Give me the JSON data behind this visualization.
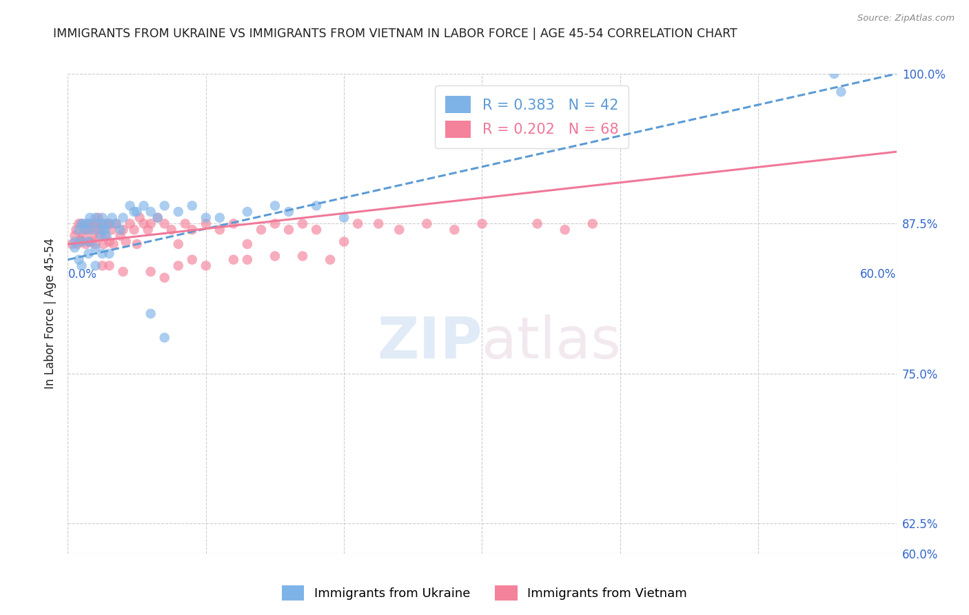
{
  "title": "IMMIGRANTS FROM UKRAINE VS IMMIGRANTS FROM VIETNAM IN LABOR FORCE | AGE 45-54 CORRELATION CHART",
  "source": "Source: ZipAtlas.com",
  "ylabel": "In Labor Force | Age 45-54",
  "ytick_labels": [
    "60.0%",
    "62.5%",
    "75.0%",
    "87.5%",
    "100.0%"
  ],
  "ytick_values": [
    0.6,
    0.625,
    0.75,
    0.875,
    1.0
  ],
  "xlim": [
    0.0,
    0.6
  ],
  "ylim": [
    0.6,
    1.0
  ],
  "ukraine_color": "#7EB3E8",
  "vietnam_color": "#F4829A",
  "ukraine_R": 0.383,
  "ukraine_N": 42,
  "vietnam_R": 0.202,
  "vietnam_N": 68,
  "legend_label_ukraine": "Immigrants from Ukraine",
  "legend_label_vietnam": "Immigrants from Vietnam",
  "watermark_zip": "ZIP",
  "watermark_atlas": "atlas",
  "title_color": "#222222",
  "tick_color": "#3366CC",
  "grid_color": "#CCCCCC",
  "ukraine_line_color": "#5B9BD5",
  "vietnam_line_color": "#F07898",
  "ukraine_line_x": [
    0.0,
    0.6
  ],
  "ukraine_line_y": [
    0.845,
    1.0
  ],
  "vietnam_line_x": [
    0.0,
    0.6
  ],
  "vietnam_line_y": [
    0.858,
    0.935
  ],
  "ukraine_scatter_x": [
    0.005,
    0.008,
    0.01,
    0.01,
    0.012,
    0.013,
    0.015,
    0.015,
    0.016,
    0.018,
    0.02,
    0.02,
    0.022,
    0.024,
    0.025,
    0.025,
    0.026,
    0.027,
    0.028,
    0.03,
    0.032,
    0.035,
    0.038,
    0.04,
    0.045,
    0.048,
    0.05,
    0.055,
    0.06,
    0.065,
    0.07,
    0.08,
    0.09,
    0.1,
    0.11,
    0.13,
    0.15,
    0.16,
    0.18,
    0.2,
    0.555,
    0.56
  ],
  "ukraine_scatter_y": [
    0.855,
    0.87,
    0.875,
    0.86,
    0.875,
    0.87,
    0.875,
    0.86,
    0.88,
    0.87,
    0.855,
    0.88,
    0.875,
    0.865,
    0.87,
    0.88,
    0.875,
    0.87,
    0.865,
    0.875,
    0.88,
    0.875,
    0.87,
    0.88,
    0.89,
    0.885,
    0.885,
    0.89,
    0.885,
    0.88,
    0.89,
    0.885,
    0.89,
    0.88,
    0.88,
    0.885,
    0.89,
    0.885,
    0.89,
    0.88,
    1.0,
    0.985
  ],
  "vietnam_scatter_x": [
    0.003,
    0.005,
    0.006,
    0.007,
    0.008,
    0.009,
    0.01,
    0.01,
    0.011,
    0.012,
    0.013,
    0.014,
    0.015,
    0.015,
    0.016,
    0.017,
    0.018,
    0.019,
    0.02,
    0.02,
    0.022,
    0.022,
    0.023,
    0.024,
    0.025,
    0.026,
    0.027,
    0.028,
    0.03,
    0.03,
    0.032,
    0.033,
    0.035,
    0.038,
    0.04,
    0.042,
    0.045,
    0.048,
    0.05,
    0.052,
    0.055,
    0.058,
    0.06,
    0.065,
    0.07,
    0.075,
    0.08,
    0.085,
    0.09,
    0.1,
    0.11,
    0.12,
    0.13,
    0.14,
    0.15,
    0.16,
    0.17,
    0.18,
    0.2,
    0.21,
    0.225,
    0.24,
    0.26,
    0.28,
    0.3,
    0.34,
    0.36,
    0.38
  ],
  "vietnam_scatter_y": [
    0.858,
    0.865,
    0.87,
    0.858,
    0.875,
    0.862,
    0.86,
    0.875,
    0.865,
    0.87,
    0.858,
    0.875,
    0.86,
    0.87,
    0.875,
    0.86,
    0.865,
    0.872,
    0.858,
    0.875,
    0.87,
    0.88,
    0.865,
    0.875,
    0.87,
    0.858,
    0.865,
    0.875,
    0.86,
    0.875,
    0.87,
    0.858,
    0.875,
    0.865,
    0.87,
    0.86,
    0.875,
    0.87,
    0.858,
    0.88,
    0.875,
    0.87,
    0.875,
    0.88,
    0.875,
    0.87,
    0.858,
    0.875,
    0.87,
    0.875,
    0.87,
    0.875,
    0.858,
    0.87,
    0.875,
    0.87,
    0.875,
    0.87,
    0.86,
    0.875,
    0.875,
    0.87,
    0.875,
    0.87,
    0.875,
    0.875,
    0.87,
    0.875
  ],
  "vietnam_low_x": [
    0.025,
    0.03,
    0.04,
    0.06,
    0.07,
    0.08,
    0.09,
    0.1,
    0.12,
    0.13,
    0.15,
    0.17,
    0.19
  ],
  "vietnam_low_y": [
    0.84,
    0.84,
    0.835,
    0.835,
    0.83,
    0.84,
    0.845,
    0.84,
    0.845,
    0.845,
    0.848,
    0.848,
    0.845
  ],
  "ukraine_low_x": [
    0.005,
    0.008,
    0.01,
    0.015,
    0.02,
    0.025,
    0.03,
    0.06,
    0.07
  ],
  "ukraine_low_y": [
    0.86,
    0.845,
    0.84,
    0.85,
    0.84,
    0.85,
    0.85,
    0.8,
    0.78
  ]
}
